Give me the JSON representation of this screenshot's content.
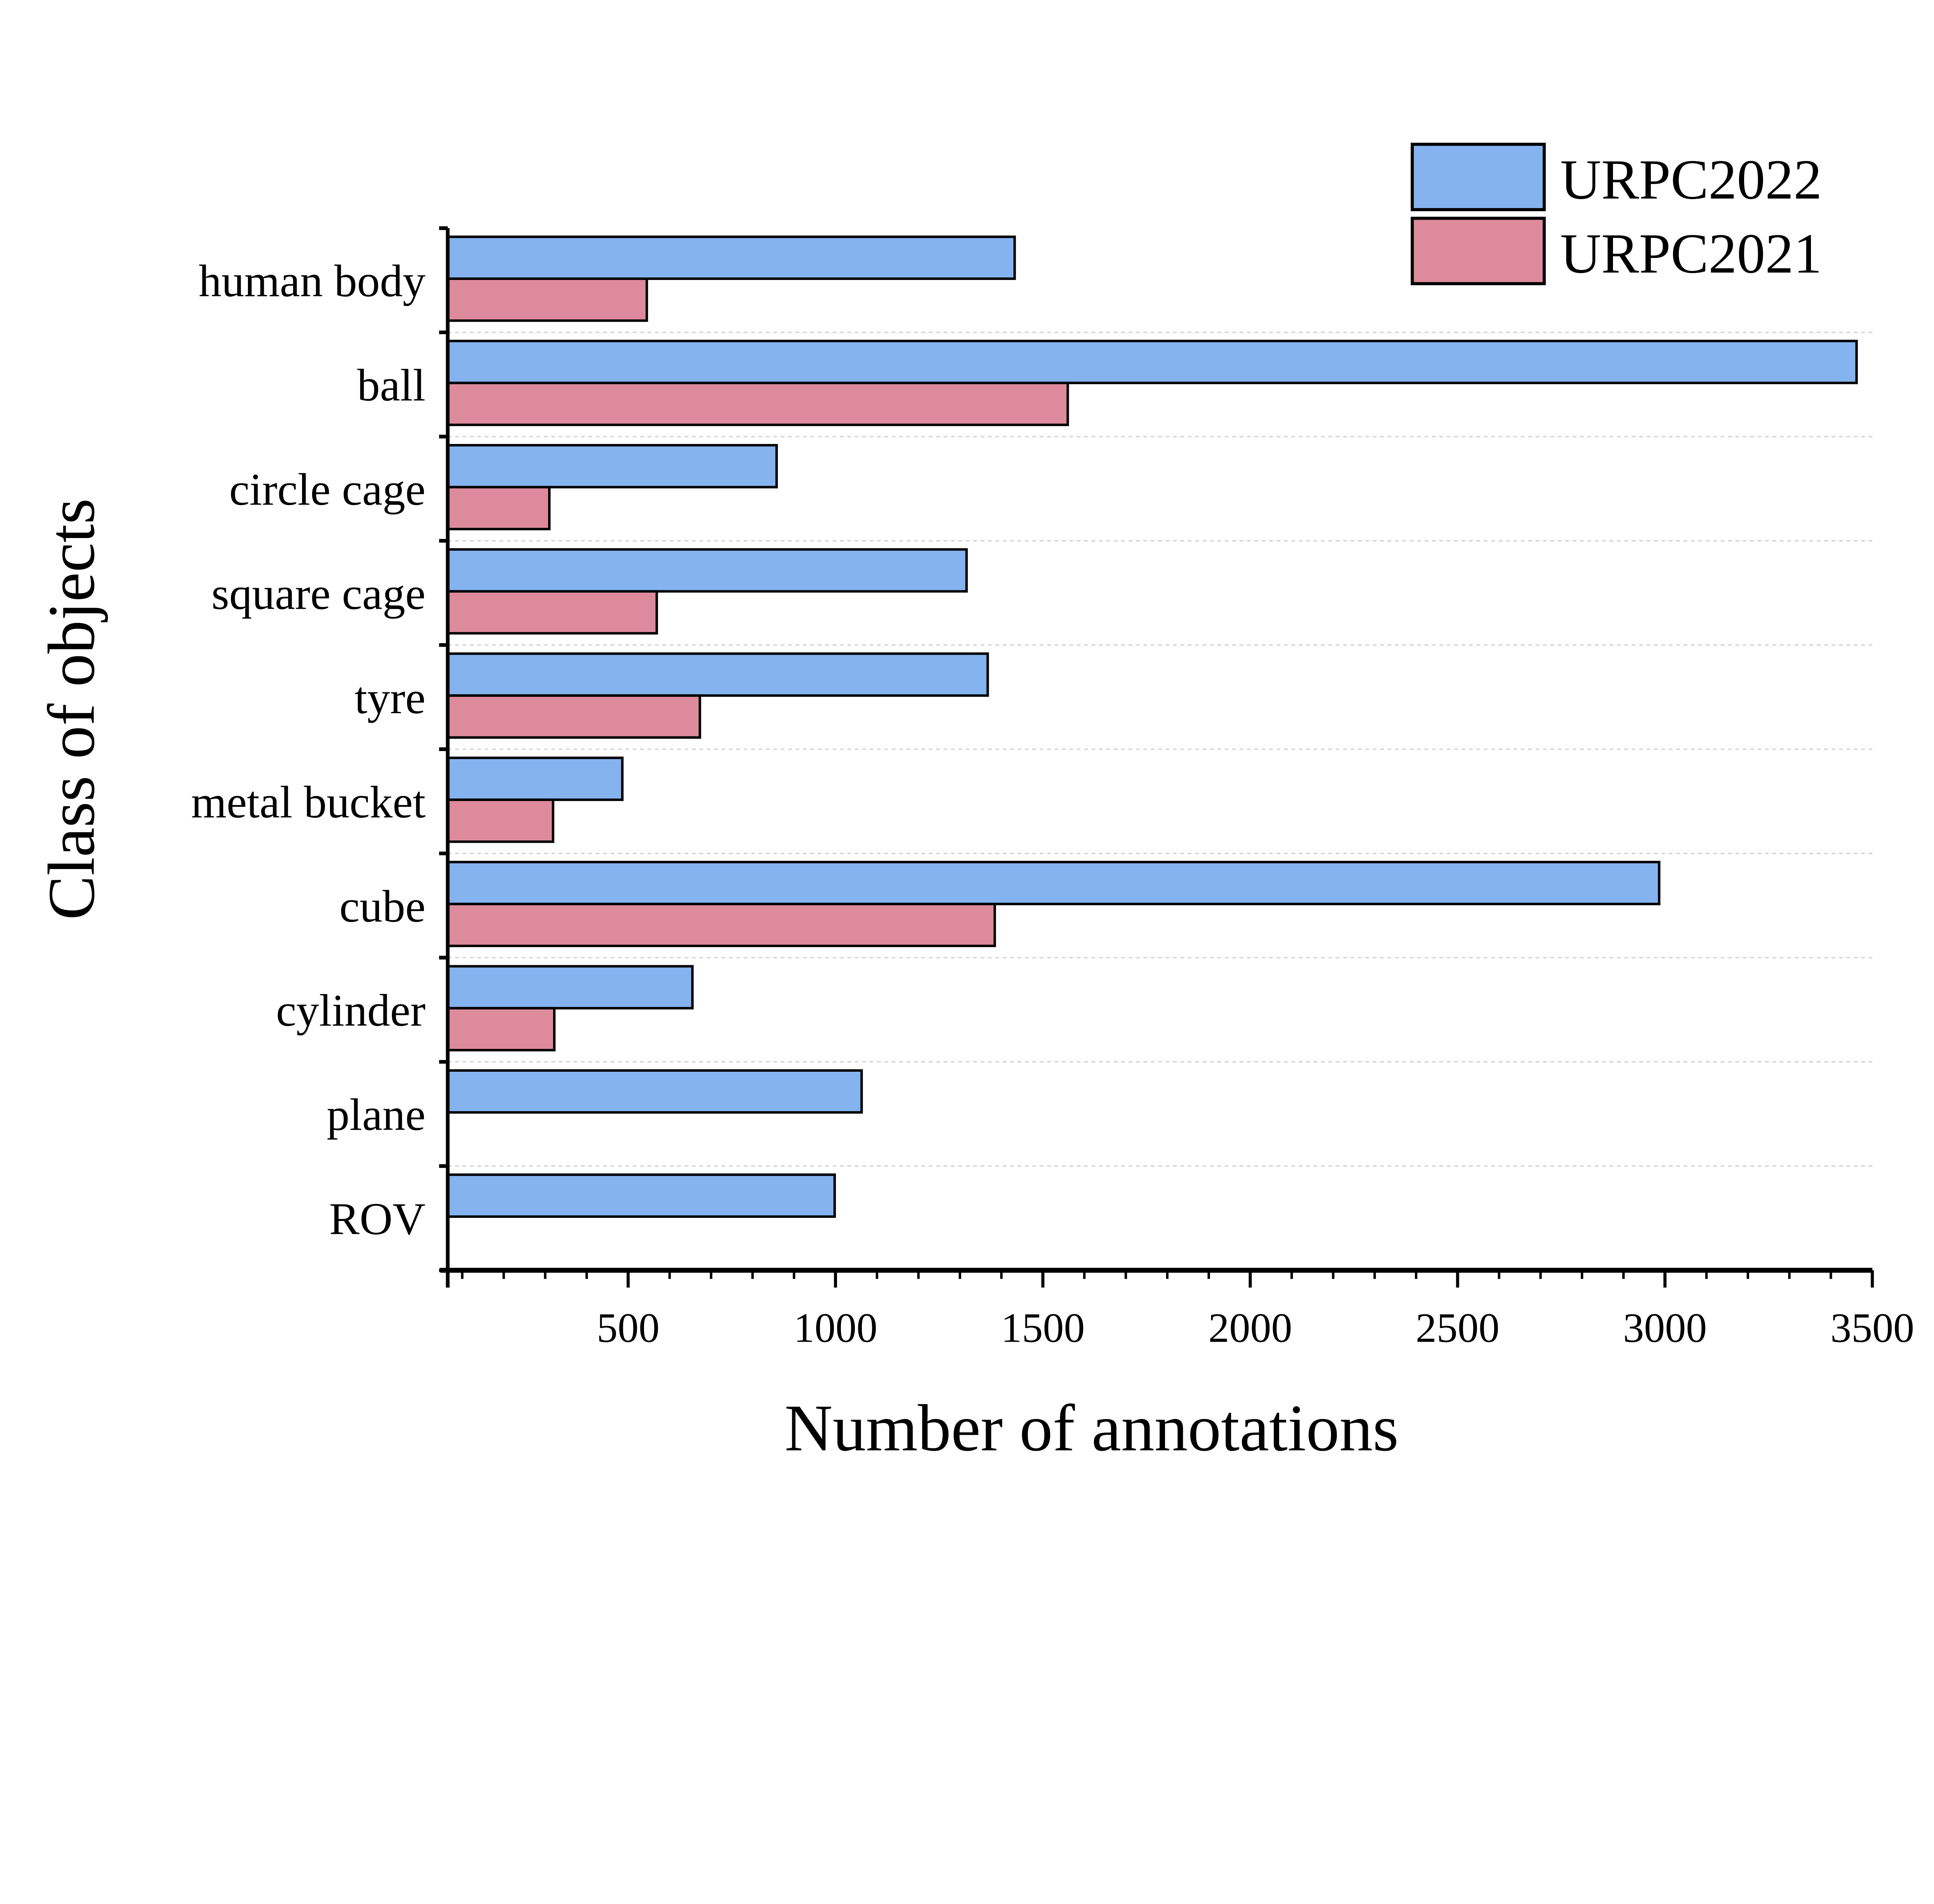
{
  "chart_data": {
    "type": "bar",
    "orientation": "horizontal",
    "title": "",
    "xlabel": "Number of annotations",
    "ylabel": "Class of objects",
    "xlim": [
      65,
      3500
    ],
    "xticks": [
      500,
      1000,
      1500,
      2000,
      2500,
      3000,
      3500
    ],
    "grid": "horizontal dashed between categories",
    "legend_position": "top-right",
    "categories": [
      "human body",
      "ball",
      "circle cage",
      "square cage",
      "tyre",
      "metal bucket",
      "cube",
      "cylinder",
      "plane",
      "ROV"
    ],
    "series": [
      {
        "name": "URPC2022",
        "color": "#84b3ef",
        "values": [
          1432,
          3462,
          858,
          1316,
          1367,
          486,
          2986,
          655,
          1063,
          998
        ]
      },
      {
        "name": "URPC2021",
        "color": "#dd8a9c",
        "values": [
          545,
          1560,
          310,
          569,
          673,
          319,
          1384,
          322,
          null,
          null
        ]
      }
    ]
  }
}
